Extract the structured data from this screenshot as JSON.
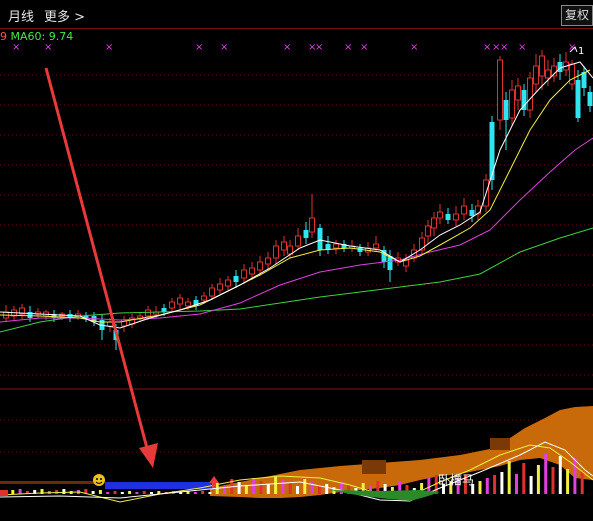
{
  "toolbar": {
    "period": "月线",
    "more": "更多 >",
    "restore_btn": "复权"
  },
  "indicator": {
    "prefix": "9",
    "ma60": "MA60: 9.74"
  },
  "annotations": {
    "signal_label": "卧槽马",
    "price_tag": "1"
  },
  "colors": {
    "up": "#e03030",
    "down": "#2fe6f0",
    "ma_short": "#ffffff",
    "ma_mid": "#f0f040",
    "ma_long": "#e040e0",
    "ma60": "#40d040",
    "volume_fill": "#c86a0a",
    "arrow": "#e83a3a"
  },
  "icons": {
    "signal_marker": "smiley-icon",
    "up_marker": "up-arrow-icon",
    "top_marker": "x-mark-icon"
  }
}
